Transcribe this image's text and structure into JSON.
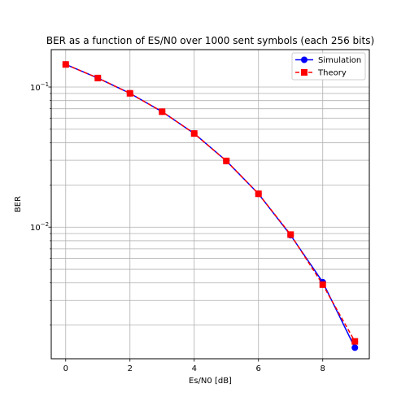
{
  "chart_data": {
    "type": "line",
    "title": "BER as a function of ES/N0 over 1000 sent symbols (each 256 bits)",
    "xlabel": "Es/N0 [dB]",
    "ylabel": "BER",
    "xscale": "linear",
    "yscale": "log",
    "xlim": [
      -0.45,
      9.45
    ],
    "ylim": [
      0.00115,
      0.185
    ],
    "grid": true,
    "legend_position": "upper right",
    "x_ticks": [
      0,
      2,
      4,
      6,
      8
    ],
    "x_tick_labels": [
      "0",
      "2",
      "4",
      "6",
      "8"
    ],
    "y_major_ticks": [
      0.1,
      0.01
    ],
    "y_major_tick_labels": [
      "10",
      "10"
    ],
    "y_major_tick_exponents": [
      "−1",
      "−2"
    ],
    "y_minor_ticks": [
      0.002,
      0.003,
      0.004,
      0.005,
      0.006,
      0.007,
      0.008,
      0.009,
      0.02,
      0.03,
      0.04,
      0.05,
      0.06,
      0.07,
      0.08,
      0.09
    ],
    "x": [
      0,
      1,
      2,
      3,
      4,
      5,
      6,
      7,
      8,
      9
    ],
    "series": [
      {
        "name": "Simulation",
        "color": "#0000ff",
        "marker": "circle",
        "linestyle": "solid",
        "values": [
          0.145,
          0.116,
          0.0902,
          0.0667,
          0.0466,
          0.0297,
          0.0173,
          0.00876,
          0.00405,
          0.00138
        ]
      },
      {
        "name": "Theory",
        "color": "#ff0000",
        "marker": "square",
        "linestyle": "dashed",
        "values": [
          0.145,
          0.116,
          0.0902,
          0.0667,
          0.0466,
          0.0297,
          0.0173,
          0.00885,
          0.00389,
          0.00153
        ]
      }
    ]
  }
}
